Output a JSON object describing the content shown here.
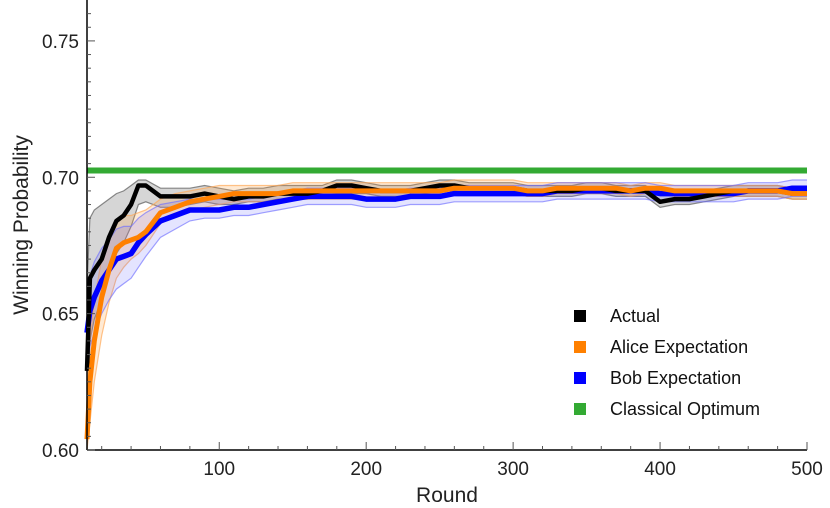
{
  "chart_data": {
    "type": "line",
    "title": "",
    "xlabel": "Round",
    "ylabel": "Winning Probability",
    "xlim": [
      10,
      500
    ],
    "ylim": [
      0.6,
      0.765
    ],
    "x_ticks": [
      100,
      200,
      300,
      400,
      500
    ],
    "y_ticks": [
      0.6,
      0.65,
      0.7,
      0.75
    ],
    "x_tick_labels": [
      "100",
      "200",
      "300",
      "400",
      "500"
    ],
    "y_tick_labels": [
      "0.60",
      "0.65",
      "0.70",
      "0.75"
    ],
    "grid": false,
    "legend_position": "bottom-right",
    "series": [
      {
        "name": "Actual",
        "color": "#000000",
        "x": [
          10,
          12,
          15,
          20,
          25,
          30,
          35,
          40,
          45,
          50,
          60,
          70,
          80,
          90,
          100,
          110,
          120,
          130,
          140,
          150,
          160,
          170,
          180,
          190,
          200,
          210,
          220,
          230,
          240,
          250,
          260,
          270,
          280,
          290,
          300,
          310,
          320,
          330,
          340,
          350,
          360,
          370,
          380,
          390,
          400,
          410,
          420,
          430,
          440,
          450,
          460,
          470,
          480,
          490,
          500
        ],
        "y": [
          0.629,
          0.663,
          0.666,
          0.67,
          0.678,
          0.684,
          0.686,
          0.69,
          0.697,
          0.697,
          0.693,
          0.693,
          0.693,
          0.694,
          0.693,
          0.692,
          0.693,
          0.693,
          0.694,
          0.694,
          0.694,
          0.695,
          0.697,
          0.697,
          0.696,
          0.695,
          0.695,
          0.695,
          0.696,
          0.697,
          0.697,
          0.696,
          0.696,
          0.696,
          0.696,
          0.695,
          0.695,
          0.695,
          0.695,
          0.696,
          0.696,
          0.695,
          0.695,
          0.695,
          0.691,
          0.692,
          0.692,
          0.693,
          0.694,
          0.695,
          0.695,
          0.695,
          0.695,
          0.694,
          0.694
        ],
        "lower": [
          0.6,
          0.64,
          0.648,
          0.655,
          0.665,
          0.672,
          0.676,
          0.682,
          0.69,
          0.691,
          0.689,
          0.689,
          0.69,
          0.691,
          0.69,
          0.69,
          0.691,
          0.691,
          0.692,
          0.692,
          0.692,
          0.693,
          0.694,
          0.694,
          0.694,
          0.693,
          0.693,
          0.693,
          0.694,
          0.695,
          0.695,
          0.694,
          0.694,
          0.694,
          0.694,
          0.693,
          0.693,
          0.693,
          0.693,
          0.694,
          0.694,
          0.693,
          0.693,
          0.693,
          0.689,
          0.69,
          0.69,
          0.691,
          0.692,
          0.693,
          0.693,
          0.693,
          0.693,
          0.692,
          0.692
        ],
        "upper": [
          0.66,
          0.685,
          0.688,
          0.69,
          0.692,
          0.694,
          0.695,
          0.697,
          0.699,
          0.699,
          0.696,
          0.696,
          0.696,
          0.697,
          0.696,
          0.695,
          0.696,
          0.696,
          0.697,
          0.697,
          0.697,
          0.697,
          0.699,
          0.699,
          0.698,
          0.697,
          0.697,
          0.697,
          0.698,
          0.699,
          0.699,
          0.698,
          0.698,
          0.698,
          0.698,
          0.697,
          0.697,
          0.697,
          0.697,
          0.698,
          0.698,
          0.697,
          0.697,
          0.697,
          0.694,
          0.694,
          0.694,
          0.695,
          0.696,
          0.697,
          0.697,
          0.697,
          0.697,
          0.696,
          0.696
        ]
      },
      {
        "name": "Alice Expectation",
        "color": "#ff8000",
        "x": [
          10,
          12,
          15,
          20,
          25,
          30,
          35,
          40,
          45,
          50,
          60,
          70,
          80,
          90,
          100,
          110,
          120,
          130,
          140,
          150,
          160,
          170,
          180,
          190,
          200,
          210,
          220,
          230,
          240,
          250,
          260,
          270,
          280,
          290,
          300,
          310,
          320,
          330,
          340,
          350,
          360,
          370,
          380,
          390,
          400,
          410,
          420,
          430,
          440,
          450,
          460,
          470,
          480,
          490,
          500
        ],
        "y": [
          0.604,
          0.625,
          0.64,
          0.656,
          0.666,
          0.674,
          0.676,
          0.677,
          0.678,
          0.68,
          0.687,
          0.689,
          0.691,
          0.692,
          0.693,
          0.694,
          0.694,
          0.694,
          0.694,
          0.695,
          0.695,
          0.695,
          0.695,
          0.695,
          0.695,
          0.695,
          0.695,
          0.695,
          0.695,
          0.695,
          0.696,
          0.696,
          0.696,
          0.696,
          0.696,
          0.695,
          0.695,
          0.696,
          0.696,
          0.696,
          0.696,
          0.696,
          0.695,
          0.696,
          0.696,
          0.695,
          0.695,
          0.695,
          0.695,
          0.695,
          0.695,
          0.695,
          0.695,
          0.694,
          0.694
        ],
        "lower": [
          0.6,
          0.61,
          0.625,
          0.642,
          0.654,
          0.663,
          0.667,
          0.67,
          0.672,
          0.675,
          0.683,
          0.686,
          0.688,
          0.689,
          0.69,
          0.691,
          0.691,
          0.691,
          0.691,
          0.692,
          0.692,
          0.692,
          0.692,
          0.692,
          0.692,
          0.692,
          0.692,
          0.693,
          0.693,
          0.693,
          0.694,
          0.694,
          0.694,
          0.694,
          0.694,
          0.693,
          0.693,
          0.694,
          0.694,
          0.694,
          0.694,
          0.694,
          0.693,
          0.694,
          0.694,
          0.693,
          0.693,
          0.693,
          0.693,
          0.693,
          0.693,
          0.693,
          0.693,
          0.692,
          0.692
        ],
        "upper": [
          0.625,
          0.64,
          0.655,
          0.67,
          0.678,
          0.684,
          0.686,
          0.686,
          0.687,
          0.688,
          0.692,
          0.694,
          0.695,
          0.696,
          0.697,
          0.697,
          0.697,
          0.697,
          0.697,
          0.698,
          0.698,
          0.698,
          0.698,
          0.698,
          0.698,
          0.698,
          0.698,
          0.698,
          0.698,
          0.698,
          0.699,
          0.699,
          0.699,
          0.699,
          0.699,
          0.698,
          0.698,
          0.698,
          0.698,
          0.698,
          0.698,
          0.698,
          0.697,
          0.698,
          0.698,
          0.697,
          0.697,
          0.697,
          0.697,
          0.697,
          0.697,
          0.697,
          0.697,
          0.696,
          0.696
        ]
      },
      {
        "name": "Bob Expectation",
        "color": "#0000ff",
        "x": [
          10,
          12,
          15,
          20,
          25,
          30,
          35,
          40,
          45,
          50,
          60,
          70,
          80,
          90,
          100,
          110,
          120,
          130,
          140,
          150,
          160,
          170,
          180,
          190,
          200,
          210,
          220,
          230,
          240,
          250,
          260,
          270,
          280,
          290,
          300,
          310,
          320,
          330,
          340,
          350,
          360,
          370,
          380,
          390,
          400,
          410,
          420,
          430,
          440,
          450,
          460,
          470,
          480,
          490,
          500
        ],
        "y": [
          0.643,
          0.651,
          0.656,
          0.662,
          0.666,
          0.67,
          0.671,
          0.672,
          0.676,
          0.679,
          0.684,
          0.686,
          0.688,
          0.688,
          0.688,
          0.689,
          0.689,
          0.69,
          0.691,
          0.692,
          0.693,
          0.693,
          0.693,
          0.693,
          0.692,
          0.692,
          0.692,
          0.693,
          0.693,
          0.693,
          0.694,
          0.694,
          0.694,
          0.694,
          0.694,
          0.694,
          0.694,
          0.695,
          0.695,
          0.695,
          0.695,
          0.695,
          0.695,
          0.695,
          0.694,
          0.694,
          0.694,
          0.694,
          0.694,
          0.694,
          0.695,
          0.695,
          0.695,
          0.696,
          0.696
        ],
        "lower": [
          0.63,
          0.638,
          0.643,
          0.65,
          0.655,
          0.659,
          0.661,
          0.663,
          0.667,
          0.671,
          0.678,
          0.681,
          0.684,
          0.685,
          0.685,
          0.686,
          0.686,
          0.687,
          0.688,
          0.689,
          0.69,
          0.69,
          0.69,
          0.69,
          0.689,
          0.689,
          0.689,
          0.69,
          0.69,
          0.69,
          0.691,
          0.691,
          0.691,
          0.691,
          0.691,
          0.691,
          0.691,
          0.692,
          0.692,
          0.692,
          0.692,
          0.692,
          0.692,
          0.692,
          0.691,
          0.691,
          0.691,
          0.691,
          0.691,
          0.691,
          0.692,
          0.692,
          0.692,
          0.693,
          0.693
        ],
        "upper": [
          0.656,
          0.664,
          0.669,
          0.674,
          0.677,
          0.681,
          0.682,
          0.682,
          0.685,
          0.687,
          0.69,
          0.691,
          0.692,
          0.692,
          0.692,
          0.692,
          0.692,
          0.693,
          0.694,
          0.695,
          0.696,
          0.696,
          0.696,
          0.696,
          0.695,
          0.695,
          0.695,
          0.696,
          0.696,
          0.696,
          0.697,
          0.697,
          0.697,
          0.697,
          0.697,
          0.697,
          0.697,
          0.698,
          0.698,
          0.698,
          0.698,
          0.698,
          0.698,
          0.698,
          0.697,
          0.697,
          0.697,
          0.697,
          0.697,
          0.697,
          0.698,
          0.698,
          0.698,
          0.699,
          0.699
        ]
      },
      {
        "name": "Classical Optimum",
        "color": "#33aa33",
        "x": [
          10,
          500
        ],
        "y": [
          0.7025,
          0.7025
        ]
      }
    ]
  }
}
